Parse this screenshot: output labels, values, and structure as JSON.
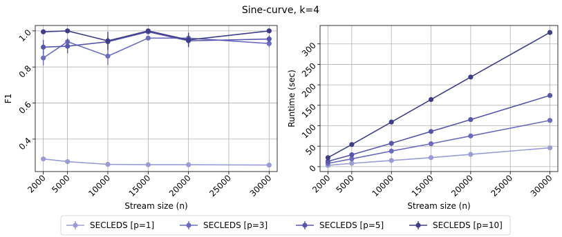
{
  "figure_title": "Sine-curve, k=4",
  "legend": [
    {
      "label": "SECLEDS [p=1]",
      "color": "#9b9bd6"
    },
    {
      "label": "SECLEDS [p=3]",
      "color": "#6b6bc0"
    },
    {
      "label": "SECLEDS [p=5]",
      "color": "#5656ac"
    },
    {
      "label": "SECLEDS [p=10]",
      "color": "#3f3d86"
    }
  ],
  "chart_data": [
    {
      "type": "line",
      "title": "",
      "xlabel": "Stream size (n)",
      "ylabel": "F1",
      "xlim": [
        1000,
        31000
      ],
      "ylim": [
        0.22,
        1.03
      ],
      "xticks": [
        2000,
        5000,
        10000,
        15000,
        20000,
        25000,
        30000
      ],
      "yticks": [
        0.4,
        0.6,
        0.8,
        1.0
      ],
      "ytick_labels": [
        "0.4",
        "0.6",
        "0.8",
        "1.0"
      ],
      "grid": true,
      "x": [
        2000,
        5000,
        10000,
        15000,
        20000,
        30000
      ],
      "series": [
        {
          "name": "SECLEDS [p=1]",
          "color": "#9b9bd6",
          "values": [
            0.29,
            0.275,
            0.26,
            0.258,
            0.258,
            0.256
          ],
          "err": [
            0.005,
            0.005,
            0.005,
            0.005,
            0.005,
            0.005
          ]
        },
        {
          "name": "SECLEDS [p=3]",
          "color": "#6b6bc0",
          "values": [
            0.85,
            0.94,
            0.86,
            0.96,
            0.96,
            0.93
          ],
          "err": [
            0.04,
            0.02,
            0.05,
            0.01,
            0.01,
            0.02
          ]
        },
        {
          "name": "SECLEDS [p=5]",
          "color": "#5656ac",
          "values": [
            0.91,
            0.915,
            0.94,
            0.995,
            0.945,
            0.955
          ],
          "err": [
            0.04,
            0.04,
            0.03,
            0.01,
            0.03,
            0.02
          ]
        },
        {
          "name": "SECLEDS [p=10]",
          "color": "#3f3d86",
          "values": [
            0.995,
            1.0,
            0.945,
            1.0,
            0.95,
            1.0
          ],
          "err": [
            0.005,
            0.005,
            0.05,
            0.005,
            0.04,
            0.005
          ]
        }
      ]
    },
    {
      "type": "line",
      "title": "",
      "xlabel": "Stream size (n)",
      "ylabel": "Runtime (sec)",
      "xlim": [
        1000,
        31000
      ],
      "ylim": [
        -12,
        345
      ],
      "xticks": [
        2000,
        5000,
        10000,
        15000,
        20000,
        25000,
        30000
      ],
      "yticks": [
        0,
        50,
        100,
        150,
        200,
        250,
        300
      ],
      "ytick_labels": [
        "0",
        "50",
        "100",
        "150",
        "200",
        "250",
        "300"
      ],
      "grid": true,
      "x": [
        2000,
        5000,
        10000,
        15000,
        20000,
        30000
      ],
      "series": [
        {
          "name": "SECLEDS [p=1]",
          "color": "#9b9bd6",
          "values": [
            3,
            8,
            15,
            22,
            30,
            46
          ]
        },
        {
          "name": "SECLEDS [p=3]",
          "color": "#6b6bc0",
          "values": [
            8,
            19,
            38,
            56,
            75,
            113
          ]
        },
        {
          "name": "SECLEDS [p=5]",
          "color": "#5656ac",
          "values": [
            13,
            29,
            57,
            86,
            115,
            174
          ]
        },
        {
          "name": "SECLEDS [p=10]",
          "color": "#3f3d86",
          "values": [
            22,
            54,
            109,
            164,
            219,
            328
          ]
        }
      ]
    }
  ]
}
